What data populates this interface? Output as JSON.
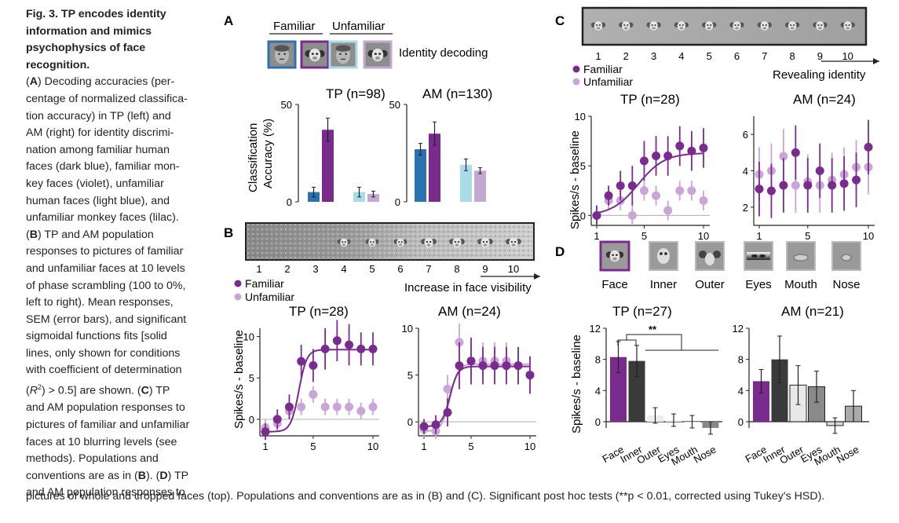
{
  "caption": {
    "title": "Fig. 3. TP encodes identity information and mimics psychophysics of face recognition.",
    "lines": [
      "(A) Decoding accuracies (per-",
      "centage of normalized classifica-",
      "tion accuracy) in TP (left) and",
      "AM (right) for identity discrimi-",
      "nation among familiar human",
      "faces (dark blue), familiar mon-",
      "key faces (violet), unfamiliar",
      "human faces (light blue), and",
      "unfamiliar monkey faces (lilac).",
      "(B) TP and AM population",
      "responses to pictures of familiar",
      "and unfamiliar faces at 10 levels",
      "of phase scrambling (100 to 0%,",
      "left to right). Mean responses,",
      "SEM (error bars), and significant",
      "sigmoidal functions fits [solid",
      "lines, only shown for conditions",
      "with coefficient of determination",
      "(R²) > 0.5] are shown. (C) TP",
      "and AM population responses to",
      "pictures of familiar and unfamiliar",
      "faces at 10 blurring levels (see",
      "methods). Populations and",
      "conventions are as in (B). (D) TP",
      "and AM population responses to"
    ],
    "tail": "pictures of whole and cropped faces (top). Populations and conventions are as in (B) and (C). Significant post hoc tests (**p < 0.01, corrected using Tukey's HSD)."
  },
  "panels": {
    "A": {
      "letter": "A",
      "familiar": "Familiar",
      "unfamiliar": "Unfamiliar",
      "decoding": "Identity decoding",
      "ylabel1": "Classification",
      "ylabel2": "Accuracy (%)"
    },
    "B": {
      "letter": "B",
      "xtitle": "Increase in face visibility",
      "ylabel": "Spikes/s - baseline"
    },
    "C": {
      "letter": "C",
      "xtitle": "Revealing identity",
      "ylabel": "Spikes/s - baseline"
    },
    "D": {
      "letter": "D",
      "ylabel": "Spikes/s - baseline",
      "sig": "**"
    },
    "legend": {
      "familiar": "Familiar",
      "unfamiliar": "Unfamiliar"
    }
  },
  "colors": {
    "familiar": "#7a2c8e",
    "unfamiliar": "#c9a6d7",
    "dark_blue": "#2b72b0",
    "light_blue": "#a9dbe8",
    "violet": "#7a2c8e",
    "lilac": "#c3a9d1",
    "gray_line": "#bbbbbb"
  },
  "strip_numbers": [
    "1",
    "2",
    "3",
    "4",
    "5",
    "6",
    "7",
    "8",
    "9",
    "10"
  ],
  "face_labels": [
    "Face",
    "Inner",
    "Outer",
    "Eyes",
    "Mouth",
    "Nose"
  ],
  "chart_data": [
    {
      "id": "A-TP",
      "type": "bar",
      "title": "TP (n=98)",
      "ylim": [
        0,
        50
      ],
      "yticks": [
        "0",
        "50"
      ],
      "categories": [
        "familiar human",
        "familiar monkey",
        "unfamiliar human",
        "unfamiliar monkey"
      ],
      "values": [
        5,
        37,
        5,
        4
      ],
      "errors": [
        2.5,
        6,
        2.5,
        1.5
      ]
    },
    {
      "id": "A-AM",
      "type": "bar",
      "title": "AM (n=130)",
      "ylim": [
        0,
        50
      ],
      "yticks": [
        "0",
        "50"
      ],
      "categories": [
        "familiar human",
        "familiar monkey",
        "unfamiliar human",
        "unfamiliar monkey"
      ],
      "values": [
        27,
        35,
        19,
        16
      ],
      "errors": [
        3,
        6,
        3,
        1.5
      ]
    },
    {
      "id": "B-TP",
      "type": "line",
      "title": "TP (n=28)",
      "xlim": [
        1,
        10
      ],
      "ylim": [
        -2,
        11
      ],
      "xticks": [
        "1",
        "5",
        "10"
      ],
      "yticks": [
        "0",
        "5",
        "10"
      ],
      "series": [
        {
          "name": "Familiar",
          "x": [
            1,
            2,
            3,
            4,
            5,
            6,
            7,
            8,
            9,
            10
          ],
          "y": [
            -1.5,
            0,
            1.5,
            7,
            6.5,
            8.5,
            9.5,
            9,
            8.5,
            8.5
          ],
          "err": [
            1,
            1.2,
            1.5,
            2,
            2,
            2.5,
            2.5,
            2.5,
            2,
            2
          ],
          "fit": true
        },
        {
          "name": "Unfamiliar",
          "x": [
            1,
            2,
            3,
            4,
            5,
            6,
            7,
            8,
            9,
            10
          ],
          "y": [
            -1,
            -0.5,
            1,
            1.5,
            3,
            1.5,
            1.5,
            1.5,
            1,
            1.5
          ],
          "err": [
            1,
            1,
            1,
            1,
            1,
            1,
            1,
            1,
            1,
            1
          ],
          "fit": false
        }
      ]
    },
    {
      "id": "B-AM",
      "type": "line",
      "title": "AM (n=24)",
      "xlim": [
        1,
        10
      ],
      "ylim": [
        -1.5,
        10
      ],
      "xticks": [
        "1",
        "5",
        "10"
      ],
      "yticks": [
        "0",
        "5",
        "10"
      ],
      "series": [
        {
          "name": "Familiar",
          "x": [
            1,
            2,
            3,
            4,
            5,
            6,
            7,
            8,
            9,
            10
          ],
          "y": [
            -0.5,
            -0.3,
            1,
            6,
            6.5,
            6,
            6,
            6,
            6,
            5
          ],
          "err": [
            0.8,
            1,
            1.5,
            2.5,
            2.5,
            2,
            2,
            2,
            2,
            2
          ],
          "fit": true
        },
        {
          "name": "Unfamiliar",
          "x": [
            1,
            2,
            3,
            4,
            5,
            6,
            7,
            8,
            9,
            10
          ],
          "y": [
            -0.8,
            -1,
            3.5,
            8.5,
            6.5,
            6.5,
            6.5,
            6.5,
            6,
            5
          ],
          "err": [
            0.8,
            0.8,
            1.5,
            2,
            2,
            2,
            2,
            2,
            2,
            2
          ],
          "fit": true
        }
      ]
    },
    {
      "id": "C-TP",
      "type": "line",
      "title": "TP (n=28)",
      "xlim": [
        1,
        10
      ],
      "ylim": [
        -1,
        10
      ],
      "xticks": [
        "1",
        "5",
        "10"
      ],
      "yticks": [
        "0",
        "5",
        "10"
      ],
      "series": [
        {
          "name": "Familiar",
          "x": [
            1,
            2,
            3,
            4,
            5,
            6,
            7,
            8,
            9,
            10
          ],
          "y": [
            0,
            2,
            3,
            3,
            5.5,
            6,
            6,
            7,
            6.5,
            6.8
          ],
          "err": [
            1,
            1,
            1.5,
            2,
            2,
            2,
            2,
            2,
            2,
            2
          ],
          "fit": true
        },
        {
          "name": "Unfamiliar",
          "x": [
            1,
            2,
            3,
            4,
            5,
            6,
            7,
            8,
            9,
            10
          ],
          "y": [
            0,
            1.5,
            1.5,
            0,
            2.5,
            2,
            0.5,
            2.5,
            2.5,
            1.5
          ],
          "err": [
            1,
            1,
            1,
            1,
            1,
            1,
            1,
            1,
            1,
            1
          ],
          "fit": false
        }
      ]
    },
    {
      "id": "C-AM",
      "type": "line",
      "title": "AM (n=24)",
      "xlim": [
        1,
        10
      ],
      "ylim": [
        1,
        7
      ],
      "xticks": [
        "1",
        "5",
        "10"
      ],
      "yticks": [
        "2",
        "4",
        "6"
      ],
      "series": [
        {
          "name": "Familiar",
          "x": [
            1,
            2,
            3,
            4,
            5,
            6,
            7,
            8,
            9,
            10
          ],
          "y": [
            3,
            2.9,
            3.2,
            5,
            3.2,
            4,
            3.2,
            3.3,
            3.5,
            5.3
          ],
          "err": [
            1.5,
            1.5,
            1.5,
            1.5,
            1.5,
            1.5,
            1.5,
            1.5,
            1.5,
            1.5
          ],
          "fit": false
        },
        {
          "name": "Unfamiliar",
          "x": [
            1,
            2,
            3,
            4,
            5,
            6,
            7,
            8,
            9,
            10
          ],
          "y": [
            3.8,
            4,
            4.8,
            3.2,
            3.4,
            3.2,
            3.5,
            3.8,
            4.2,
            4.2
          ],
          "err": [
            1.5,
            1.5,
            1.5,
            1.5,
            1.5,
            1.5,
            1.5,
            1.5,
            1.5,
            1.5
          ],
          "fit": false
        }
      ]
    },
    {
      "id": "D-TP",
      "type": "bar",
      "title": "TP (n=27)",
      "ylim": [
        -1,
        12
      ],
      "yticks": [
        "0",
        "4",
        "8",
        "12"
      ],
      "categories": [
        "Face",
        "Inner",
        "Outer",
        "Eyes",
        "Mouth",
        "Nose"
      ],
      "values": [
        8.3,
        7.8,
        0.8,
        0.2,
        0,
        -0.8
      ],
      "errors": [
        2,
        2,
        1,
        0.8,
        0.8,
        0.8
      ]
    },
    {
      "id": "D-AM",
      "type": "bar",
      "title": "AM (n=21)",
      "ylim": [
        -1,
        12
      ],
      "yticks": [
        "0",
        "4",
        "8",
        "12"
      ],
      "categories": [
        "Face",
        "Inner",
        "Outer",
        "Eyes",
        "Mouth",
        "Nose"
      ],
      "values": [
        5.2,
        8,
        4.7,
        4.5,
        -0.5,
        2
      ],
      "errors": [
        1.5,
        3,
        2.5,
        2,
        1,
        2
      ]
    }
  ]
}
